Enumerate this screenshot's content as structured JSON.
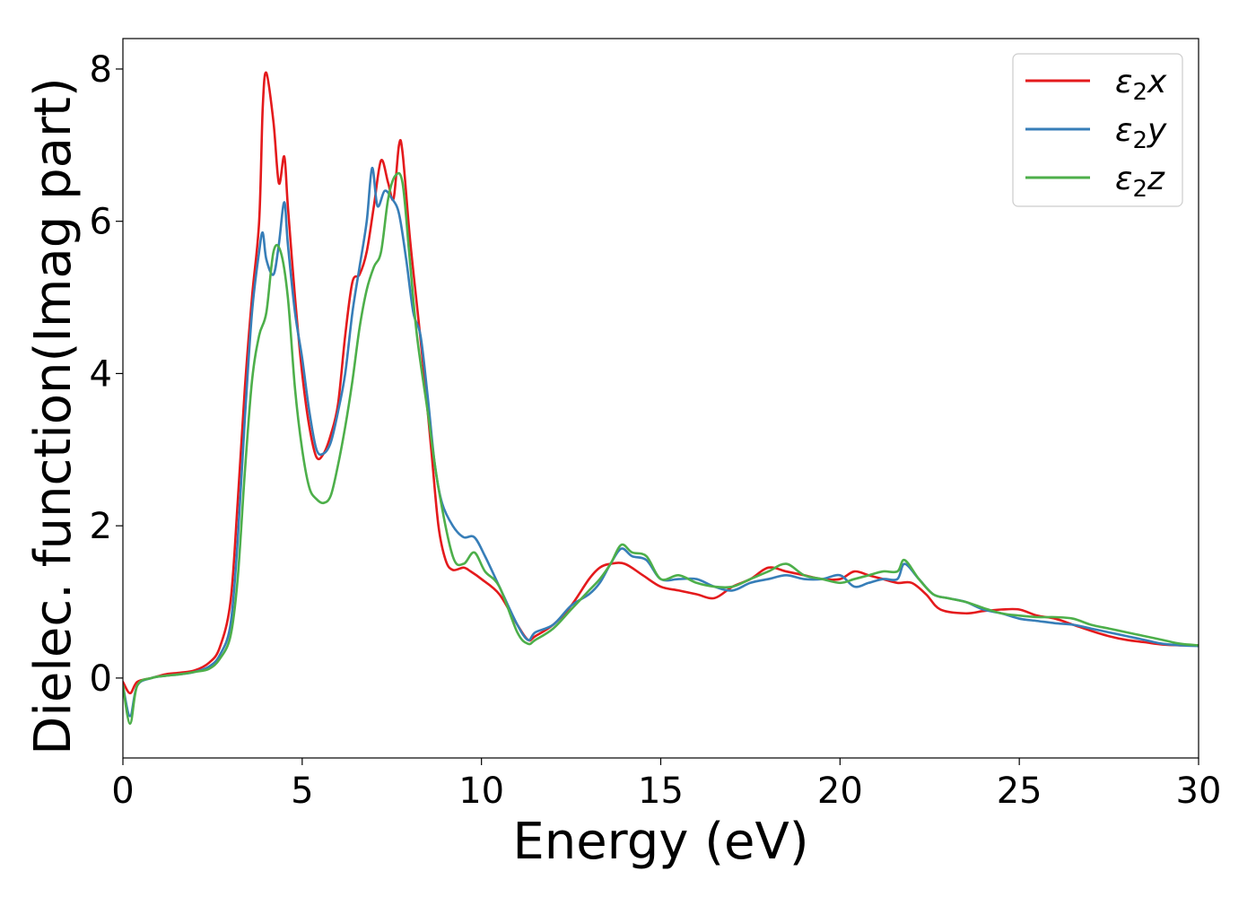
{
  "chart_data": {
    "type": "line",
    "title": "",
    "xlabel": "Energy (eV)",
    "ylabel": "Dielec. function(Imag part)",
    "xlim": [
      0,
      30
    ],
    "ylim": [
      -1.05,
      8.4
    ],
    "xticks": [
      0,
      5,
      10,
      15,
      20,
      25,
      30
    ],
    "yticks": [
      0,
      2,
      4,
      6,
      8
    ],
    "grid": false,
    "legend": "top-right",
    "series": [
      {
        "name": "ε₂x",
        "legend_base": "ε",
        "legend_sub": "2",
        "legend_tail": "x",
        "color": "#e41a1c",
        "x": [
          0,
          0.2,
          0.4,
          0.8,
          1.2,
          1.6,
          2.0,
          2.4,
          2.7,
          3.0,
          3.2,
          3.4,
          3.6,
          3.8,
          3.9,
          4.0,
          4.2,
          4.35,
          4.5,
          4.6,
          4.8,
          5.0,
          5.2,
          5.4,
          5.6,
          5.8,
          6.0,
          6.2,
          6.4,
          6.6,
          6.8,
          7.0,
          7.2,
          7.4,
          7.55,
          7.7,
          7.8,
          8.0,
          8.2,
          8.4,
          8.6,
          8.8,
          9.0,
          9.2,
          9.5,
          9.7,
          10.0,
          10.5,
          11.0,
          11.3,
          11.5,
          12.0,
          12.5,
          13.0,
          13.3,
          13.6,
          14.0,
          14.5,
          15.0,
          15.5,
          16.0,
          16.5,
          17.0,
          17.5,
          18.0,
          18.5,
          19.0,
          19.5,
          20.0,
          20.4,
          20.8,
          21.2,
          21.6,
          22.0,
          22.4,
          22.8,
          23.5,
          24.0,
          24.5,
          25.0,
          25.5,
          26.0,
          26.5,
          27.0,
          27.5,
          28.0,
          28.5,
          29.0,
          29.5,
          30.0
        ],
        "values": [
          -0.05,
          -0.2,
          -0.05,
          0.0,
          0.05,
          0.07,
          0.1,
          0.2,
          0.4,
          1.0,
          2.3,
          3.8,
          5.0,
          6.0,
          7.5,
          7.95,
          7.3,
          6.5,
          6.85,
          6.2,
          5.0,
          4.0,
          3.3,
          2.9,
          2.95,
          3.2,
          3.6,
          4.5,
          5.2,
          5.3,
          5.6,
          6.2,
          6.8,
          6.5,
          6.3,
          7.0,
          6.9,
          5.8,
          4.9,
          4.0,
          3.0,
          2.0,
          1.55,
          1.42,
          1.45,
          1.4,
          1.3,
          1.1,
          0.7,
          0.5,
          0.55,
          0.7,
          0.95,
          1.3,
          1.45,
          1.5,
          1.5,
          1.35,
          1.2,
          1.15,
          1.1,
          1.05,
          1.2,
          1.3,
          1.45,
          1.4,
          1.35,
          1.3,
          1.3,
          1.4,
          1.35,
          1.3,
          1.25,
          1.25,
          1.1,
          0.9,
          0.85,
          0.88,
          0.9,
          0.9,
          0.82,
          0.78,
          0.7,
          0.62,
          0.55,
          0.5,
          0.47,
          0.44,
          0.43,
          0.43
        ]
      },
      {
        "name": "ε₂y",
        "legend_base": "ε",
        "legend_sub": "2",
        "legend_tail": "y",
        "color": "#377eb8",
        "x": [
          0,
          0.2,
          0.4,
          0.8,
          1.2,
          1.6,
          2.0,
          2.4,
          2.7,
          3.0,
          3.2,
          3.4,
          3.6,
          3.8,
          3.9,
          4.0,
          4.2,
          4.35,
          4.5,
          4.6,
          4.8,
          5.0,
          5.2,
          5.4,
          5.6,
          5.8,
          6.0,
          6.2,
          6.4,
          6.6,
          6.8,
          6.95,
          7.1,
          7.3,
          7.5,
          7.7,
          7.9,
          8.1,
          8.3,
          8.5,
          8.7,
          8.9,
          9.2,
          9.5,
          9.8,
          10.1,
          10.5,
          11.0,
          11.3,
          11.5,
          12.0,
          12.5,
          13.0,
          13.3,
          13.6,
          13.9,
          14.2,
          14.6,
          15.0,
          15.5,
          16.0,
          16.5,
          17.0,
          17.5,
          18.0,
          18.5,
          19.0,
          19.5,
          20.0,
          20.4,
          20.8,
          21.2,
          21.6,
          21.8,
          22.2,
          22.6,
          23.0,
          23.5,
          24.0,
          24.5,
          25.0,
          25.5,
          26.0,
          26.5,
          27.0,
          27.5,
          28.0,
          28.5,
          29.0,
          29.5,
          30.0
        ],
        "values": [
          -0.1,
          -0.5,
          -0.1,
          0.0,
          0.03,
          0.05,
          0.08,
          0.15,
          0.3,
          0.7,
          1.8,
          3.4,
          4.8,
          5.6,
          5.85,
          5.5,
          5.3,
          5.7,
          6.25,
          5.7,
          4.8,
          4.2,
          3.5,
          3.0,
          2.95,
          3.1,
          3.5,
          4.0,
          4.8,
          5.4,
          6.0,
          6.7,
          6.2,
          6.4,
          6.3,
          6.1,
          5.5,
          4.8,
          4.5,
          3.7,
          2.8,
          2.3,
          2.0,
          1.85,
          1.85,
          1.6,
          1.2,
          0.7,
          0.5,
          0.6,
          0.7,
          0.95,
          1.1,
          1.25,
          1.5,
          1.7,
          1.6,
          1.55,
          1.3,
          1.3,
          1.3,
          1.2,
          1.15,
          1.25,
          1.3,
          1.35,
          1.3,
          1.3,
          1.35,
          1.2,
          1.25,
          1.3,
          1.3,
          1.5,
          1.3,
          1.1,
          1.05,
          1.0,
          0.9,
          0.85,
          0.78,
          0.75,
          0.72,
          0.7,
          0.65,
          0.6,
          0.55,
          0.5,
          0.45,
          0.43,
          0.42
        ]
      },
      {
        "name": "ε₂z",
        "legend_base": "ε",
        "legend_sub": "2",
        "legend_tail": "z",
        "color": "#4daf4a",
        "x": [
          0,
          0.2,
          0.4,
          0.8,
          1.2,
          1.6,
          2.0,
          2.4,
          2.7,
          3.0,
          3.2,
          3.4,
          3.6,
          3.8,
          4.0,
          4.2,
          4.4,
          4.6,
          4.8,
          5.0,
          5.2,
          5.4,
          5.6,
          5.8,
          6.0,
          6.2,
          6.4,
          6.6,
          6.8,
          7.0,
          7.2,
          7.4,
          7.6,
          7.8,
          8.0,
          8.2,
          8.5,
          8.8,
          9.2,
          9.5,
          9.8,
          10.1,
          10.5,
          11.0,
          11.3,
          11.5,
          12.0,
          12.5,
          13.0,
          13.3,
          13.6,
          13.9,
          14.2,
          14.6,
          15.0,
          15.5,
          16.0,
          16.5,
          17.0,
          17.5,
          18.0,
          18.5,
          19.0,
          19.5,
          20.0,
          20.4,
          20.8,
          21.2,
          21.6,
          21.8,
          22.2,
          22.6,
          23.0,
          23.5,
          24.0,
          24.5,
          25.0,
          25.5,
          26.0,
          26.5,
          27.0,
          27.5,
          28.0,
          28.5,
          29.0,
          29.5,
          30.0
        ],
        "values": [
          -0.1,
          -0.6,
          -0.1,
          0.0,
          0.03,
          0.05,
          0.08,
          0.12,
          0.25,
          0.55,
          1.3,
          2.7,
          3.9,
          4.5,
          4.8,
          5.6,
          5.6,
          5.0,
          3.8,
          3.0,
          2.5,
          2.35,
          2.3,
          2.4,
          2.8,
          3.3,
          3.9,
          4.6,
          5.1,
          5.4,
          5.6,
          6.3,
          6.6,
          6.5,
          5.5,
          4.5,
          3.5,
          2.5,
          1.6,
          1.5,
          1.65,
          1.4,
          1.2,
          0.6,
          0.45,
          0.5,
          0.65,
          0.9,
          1.15,
          1.3,
          1.5,
          1.75,
          1.65,
          1.6,
          1.3,
          1.35,
          1.25,
          1.2,
          1.2,
          1.3,
          1.4,
          1.5,
          1.35,
          1.3,
          1.25,
          1.3,
          1.35,
          1.4,
          1.4,
          1.55,
          1.3,
          1.1,
          1.05,
          1.0,
          0.92,
          0.85,
          0.82,
          0.8,
          0.8,
          0.78,
          0.7,
          0.65,
          0.6,
          0.55,
          0.5,
          0.45,
          0.43
        ]
      }
    ]
  }
}
